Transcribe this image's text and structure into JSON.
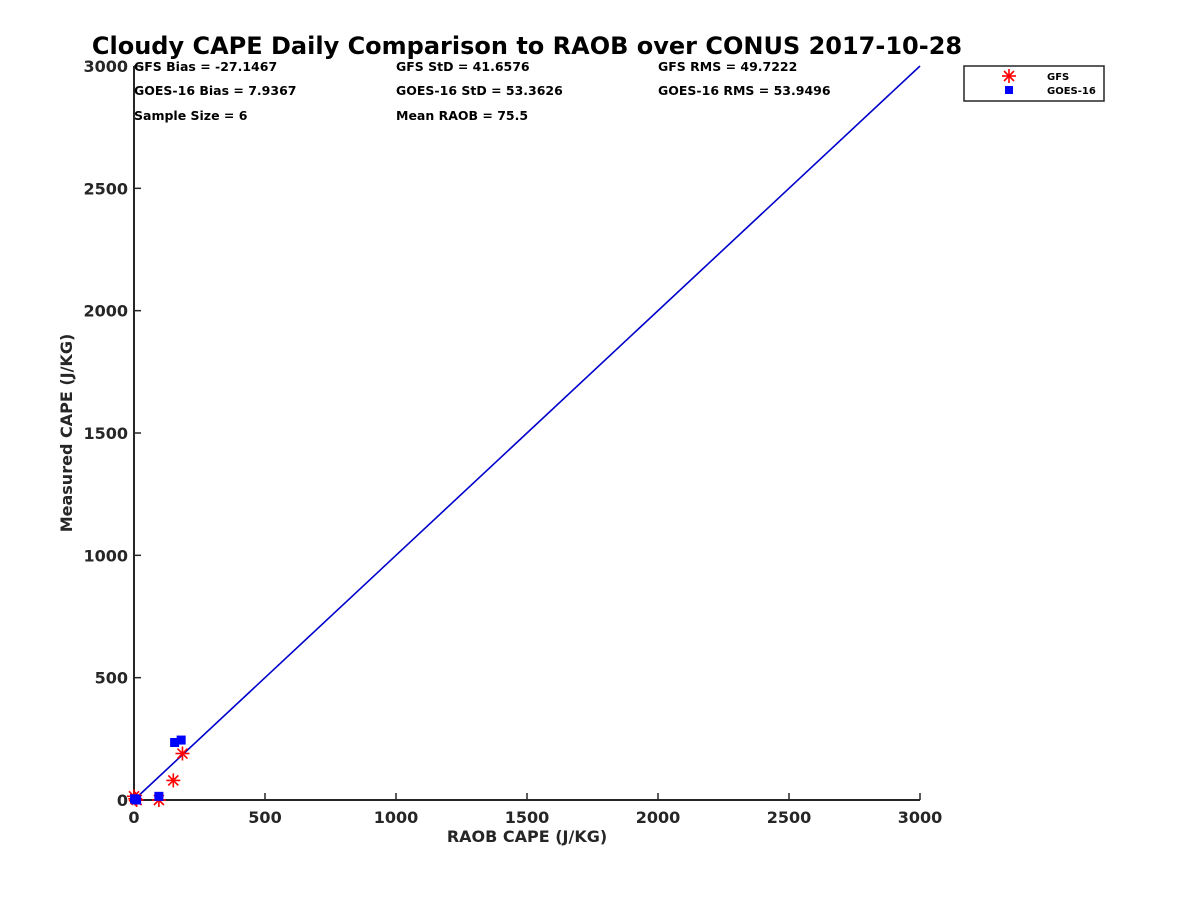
{
  "chart_data": {
    "type": "scatter",
    "title": "Cloudy CAPE Daily Comparison to RAOB over CONUS 2017-10-28",
    "xlabel": "RAOB CAPE (J/KG)",
    "ylabel": "Measured CAPE (J/KG)",
    "xlim": [
      0,
      3000
    ],
    "ylim": [
      0,
      3000
    ],
    "xticks": [
      "0",
      "500",
      "1000",
      "1500",
      "2000",
      "2500",
      "3000"
    ],
    "yticks": [
      "0",
      "500",
      "1000",
      "1500",
      "2000",
      "2500",
      "3000"
    ],
    "grid": false,
    "legend_position": "outside-top-right",
    "stats": [
      [
        "GFS Bias = -27.1467",
        "GFS StD = 41.6576",
        "GFS RMS = 49.7222"
      ],
      [
        "GOES-16 Bias = 7.9367",
        "GOES-16 StD = 53.3626",
        "GOES-16 RMS = 53.9496"
      ],
      [
        "Sample Size = 6",
        "Mean RAOB = 75.5"
      ]
    ],
    "series": [
      {
        "name": "GFS",
        "marker": "asterisk",
        "color": "#ff0000",
        "points": [
          [
            0,
            15
          ],
          [
            5,
            5
          ],
          [
            10,
            0
          ],
          [
            95,
            0
          ],
          [
            150,
            80
          ],
          [
            185,
            190
          ]
        ]
      },
      {
        "name": "GOES-16",
        "marker": "square",
        "color": "#0000ff",
        "points": [
          [
            2,
            5
          ],
          [
            8,
            2
          ],
          [
            95,
            15
          ],
          [
            155,
            235
          ],
          [
            180,
            245
          ],
          [
            10,
            0
          ]
        ]
      }
    ],
    "reference_line": {
      "color": "#0000cc",
      "points": [
        [
          0,
          0
        ],
        [
          3000,
          3000
        ]
      ]
    }
  }
}
